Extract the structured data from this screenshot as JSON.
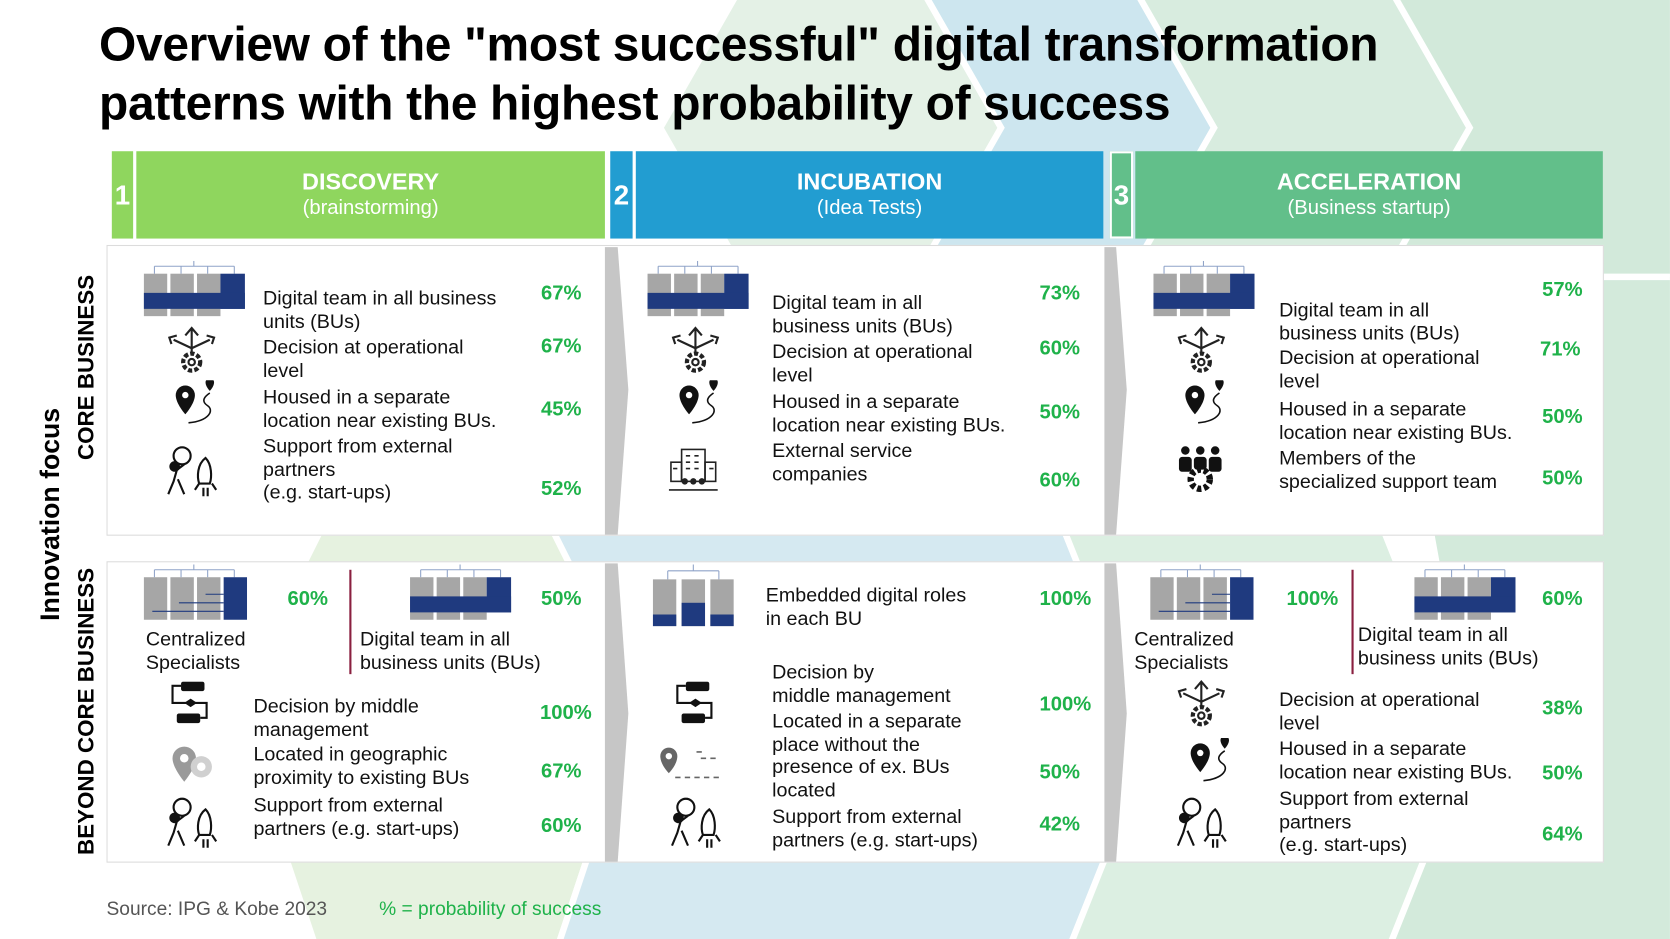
{
  "title": {
    "line1": "Overview of the \"most successful\" digital transformation",
    "line2": "patterns with the highest probability of success"
  },
  "phases": [
    {
      "num": "1",
      "title": "DISCOVERY",
      "subtitle": "(brainstorming)",
      "color": "#8fd65e"
    },
    {
      "num": "2",
      "title": "INCUBATION",
      "subtitle": "(Idea Tests)",
      "color": "#229dd1"
    },
    {
      "num": "3",
      "title": "ACCELERATION",
      "subtitle": "(Business startup)",
      "color": "#62bf8a"
    }
  ],
  "axis": {
    "innovation_focus": "Innovation focus",
    "core": "CORE BUSINESS",
    "beyond": "BEYOND CORE BUSINESS"
  },
  "core": [
    {
      "items": [
        {
          "icon": "org-chart-icon",
          "text": "Digital team in all business\nunits (BUs)",
          "pct": "67%"
        },
        {
          "icon": "decision-gear-icon",
          "text": "Decision at operational\nlevel",
          "pct": "67%"
        },
        {
          "icon": "location-route-icon",
          "text": "Housed in a separate\nlocation near existing BUs.",
          "pct": "45%"
        },
        {
          "icon": "person-rocket-icon",
          "text": "Support from external\npartners\n(e.g. start-ups)",
          "pct": "52%"
        }
      ]
    },
    {
      "items": [
        {
          "icon": "org-chart-icon",
          "text": "Digital team in all\nbusiness units (BUs)",
          "pct": "73%"
        },
        {
          "icon": "decision-gear-icon",
          "text": "Decision at operational\nlevel",
          "pct": "60%"
        },
        {
          "icon": "location-route-icon",
          "text": "Housed in a separate\nlocation near existing BUs.",
          "pct": "50%"
        },
        {
          "icon": "service-building-icon",
          "text": "External service\ncompanies",
          "pct": "60%"
        }
      ]
    },
    {
      "items": [
        {
          "icon": "org-chart-icon",
          "text": "Digital team in all\nbusiness units (BUs)",
          "pct": "57%"
        },
        {
          "icon": "decision-gear-icon",
          "text": "Decision at operational\nlevel",
          "pct": "71%"
        },
        {
          "icon": "location-route-icon",
          "text": "Housed in a separate\nlocation near existing BUs.",
          "pct": "50%"
        },
        {
          "icon": "team-gear-icon",
          "text": "Members of the\nspecialized support team",
          "pct": "50%"
        }
      ]
    }
  ],
  "beyond": [
    {
      "items": [
        {
          "icon": "centralized-icon",
          "text": "Centralized\nSpecialists",
          "pct": "60%"
        },
        {
          "icon": "org-chart-icon",
          "text": "Digital team in all\nbusiness units (BUs)",
          "pct": "50%"
        },
        {
          "icon": "flowchart-icon",
          "text": "Decision by middle\nmanagement",
          "pct": "100%"
        },
        {
          "icon": "location-proximity-icon",
          "text": "Located in geographic\nproximity to existing BUs",
          "pct": "67%"
        },
        {
          "icon": "person-rocket-icon",
          "text": "Support from external\npartners (e.g. start-ups)",
          "pct": "60%"
        }
      ]
    },
    {
      "items": [
        {
          "icon": "embedded-roles-icon",
          "text": "Embedded digital roles\nin each BU",
          "pct": "100%"
        },
        {
          "icon": "flowchart-icon",
          "text": "Decision by\nmiddle management",
          "pct": "100%"
        },
        {
          "icon": "location-dashed-icon",
          "text": "Located in a separate\nplace without the\npresence of ex. BUs\nlocated",
          "pct": "50%"
        },
        {
          "icon": "person-rocket-icon",
          "text": "Support from external\npartners  (e.g. start-ups)",
          "pct": "42%"
        }
      ]
    },
    {
      "items": [
        {
          "icon": "centralized-icon",
          "text": "Centralized\nSpecialists",
          "pct": "100%"
        },
        {
          "icon": "org-chart-icon",
          "text": "Digital team in all\nbusiness units (BUs)",
          "pct": "60%"
        },
        {
          "icon": "decision-gear-icon",
          "text": "Decision at operational\nlevel",
          "pct": "38%"
        },
        {
          "icon": "location-route-icon",
          "text": "Housed in a separate\nlocation near existing BUs.",
          "pct": "50%"
        },
        {
          "icon": "person-rocket-icon",
          "text": "Support from external\npartners\n(e.g. start-ups)",
          "pct": "64%"
        }
      ]
    }
  ],
  "footer": {
    "source": "Source: IPG & Kobe 2023",
    "legend": "% = probability of success"
  }
}
